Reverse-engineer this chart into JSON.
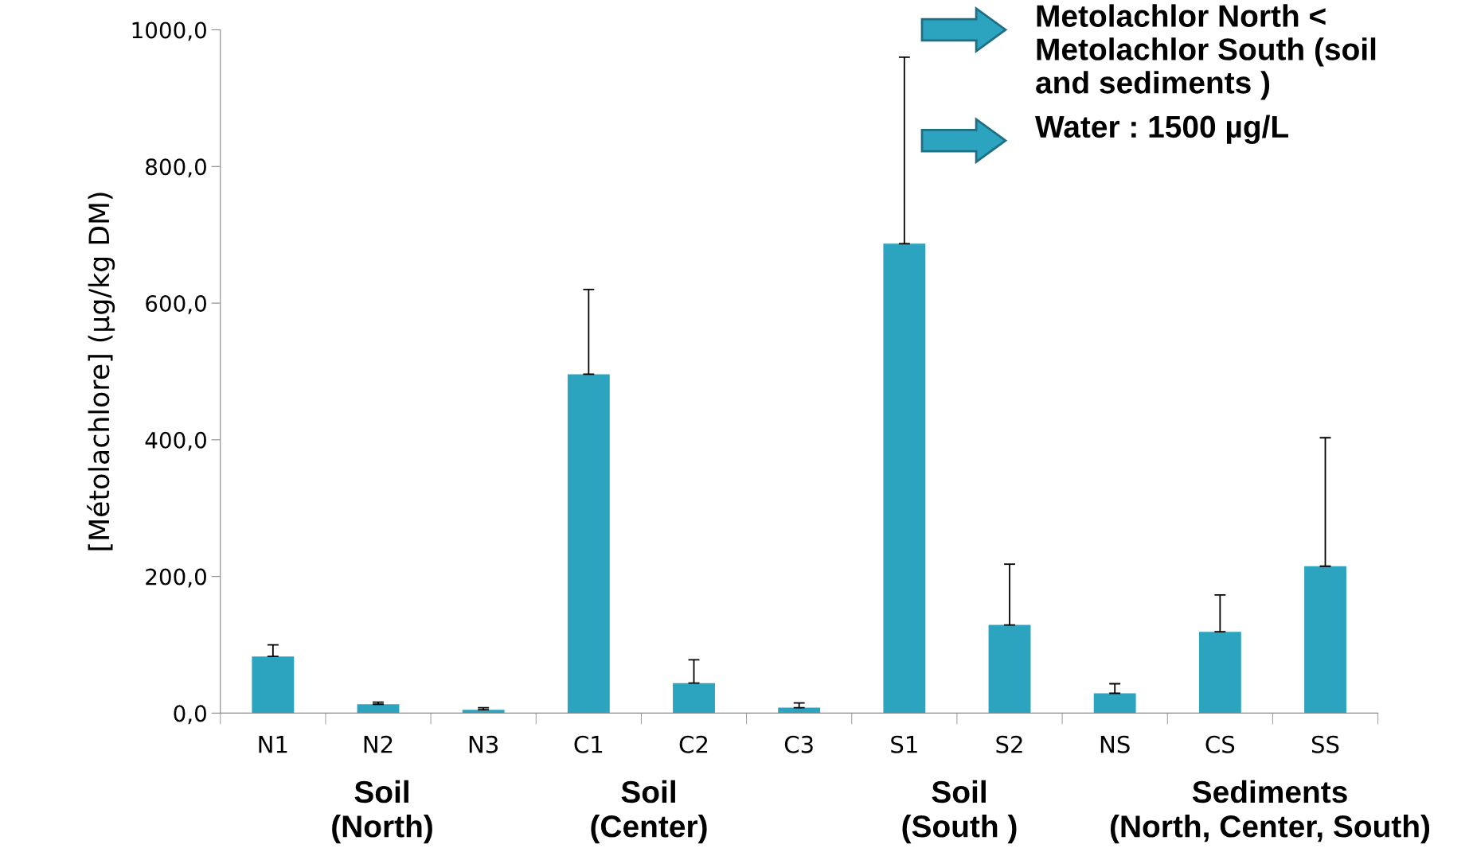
{
  "chart_data": {
    "type": "bar",
    "ylabel": "[Métolachlore] (µg/kg DM)",
    "categories": [
      "N1",
      "N2",
      "N3",
      "C1",
      "C2",
      "C3",
      "S1",
      "S2",
      "NS",
      "CS",
      "SS"
    ],
    "values": [
      83,
      13,
      5,
      496,
      44,
      8,
      687,
      129,
      29,
      119,
      215
    ],
    "errors": [
      [
        83,
        100
      ],
      [
        13,
        16
      ],
      [
        5,
        8
      ],
      [
        496,
        620
      ],
      [
        44,
        78
      ],
      [
        8,
        15
      ],
      [
        687,
        960
      ],
      [
        129,
        218
      ],
      [
        29,
        43
      ],
      [
        119,
        173
      ],
      [
        215,
        403
      ]
    ],
    "color": "#2ca3bf",
    "ylim": [
      0,
      1000
    ],
    "yticks": [
      {
        "value": 0,
        "label": "0,0"
      },
      {
        "value": 200,
        "label": "200,0"
      },
      {
        "value": 400,
        "label": "400,0"
      },
      {
        "value": 600,
        "label": "600,0"
      },
      {
        "value": 800,
        "label": "800,0"
      },
      {
        "value": 1000,
        "label": "1000,0"
      }
    ],
    "grid": false,
    "annotations": [
      "Soil\n(North)",
      "Soil\n(Center)",
      "Soil\n(South )",
      "Sediments\n(North, Center, South)",
      "Metolachlor North <\nMetolachlor South (soil\nand sediments )",
      "Water : 1500 µg/L"
    ]
  }
}
